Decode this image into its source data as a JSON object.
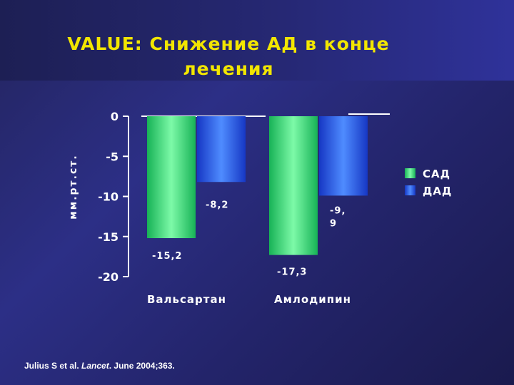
{
  "slide": {
    "title": "VALUE: Снижение АД в конце\nлечения",
    "source": {
      "authors": "Julius S et al.",
      "journal": "Lancet",
      "details": ". June 2004;363."
    }
  },
  "colors": {
    "sbp": "#3ee67e",
    "dbp": "#2c5cf2",
    "text": "#ffffff",
    "title": "#f2e600"
  },
  "chart_data": {
    "type": "bar",
    "categories": [
      "Вальсартан",
      "Амлодипин"
    ],
    "series": [
      {
        "name": "САД",
        "values": [
          -15.2,
          -17.3
        ],
        "labels": [
          "-15,2",
          "-17,3"
        ]
      },
      {
        "name": "ДАД",
        "values": [
          -8.2,
          -9.9
        ],
        "labels": [
          "-8,2",
          "-9,\n9"
        ]
      }
    ],
    "ylabel": "мм.рт.ст.",
    "ylim": [
      -20,
      0
    ],
    "yticks": [
      0,
      -5,
      -10,
      -15,
      -20
    ],
    "ytick_labels": [
      "0",
      "-5",
      "-10",
      "-15",
      "-20"
    ],
    "legend": "right",
    "grid": false
  }
}
